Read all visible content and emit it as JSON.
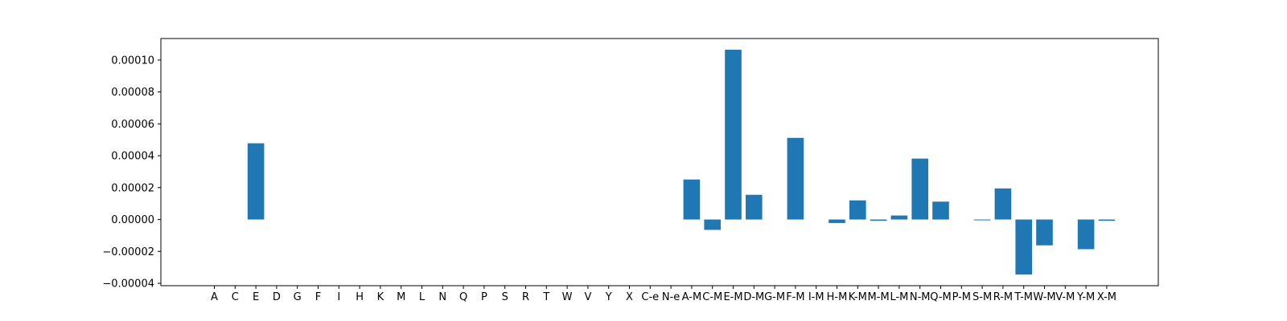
{
  "chart_data": {
    "type": "bar",
    "title": "",
    "xlabel": "",
    "ylabel": "",
    "grid": false,
    "bar_color": "#1f77b4",
    "ylim": [
      -4.15e-05,
      0.0001135
    ],
    "yticks": [
      -4e-05,
      -2e-05,
      0.0,
      2e-05,
      4e-05,
      6e-05,
      8e-05,
      0.0001
    ],
    "ytick_labels": [
      "−0.00004",
      "−0.00002",
      "0.00000",
      "0.00002",
      "0.00004",
      "0.00006",
      "0.00008",
      "0.00010"
    ],
    "categories": [
      "A",
      "C",
      "E",
      "D",
      "G",
      "F",
      "I",
      "H",
      "K",
      "M",
      "L",
      "N",
      "Q",
      "P",
      "S",
      "R",
      "T",
      "W",
      "V",
      "Y",
      "X",
      "C-e",
      "N-e",
      "A-M",
      "C-M",
      "E-M",
      "D-M",
      "G-M",
      "F-M",
      "I-M",
      "H-M",
      "K-M",
      "M-M",
      "L-M",
      "N-M",
      "Q-M",
      "P-M",
      "S-M",
      "R-M",
      "T-M",
      "W-M",
      "V-M",
      "Y-M",
      "X-M"
    ],
    "values": [
      0,
      0,
      4.78e-05,
      0,
      0,
      0,
      0,
      0,
      0,
      0,
      0,
      0,
      0,
      0,
      0,
      0,
      0,
      0,
      0,
      0,
      0,
      0,
      0,
      2.51e-05,
      -6.5e-06,
      0.0001065,
      1.55e-05,
      0,
      5.12e-05,
      0,
      -2.2e-06,
      1.2e-05,
      -8e-07,
      2.5e-06,
      3.82e-05,
      1.12e-05,
      0,
      -5e-07,
      1.95e-05,
      -3.45e-05,
      -1.62e-05,
      0,
      -1.86e-05,
      -8e-07
    ]
  }
}
